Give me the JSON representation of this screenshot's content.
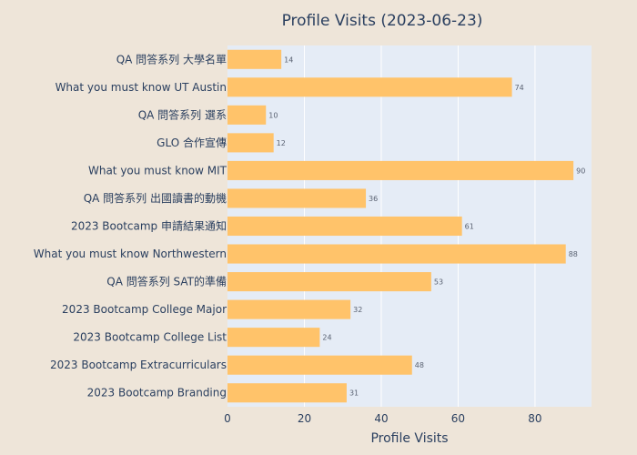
{
  "chart_data": {
    "type": "bar",
    "orientation": "horizontal",
    "title": "Profile Visits (2023-06-23)",
    "xlabel": "Profile Visits",
    "ylabel": "",
    "xlim": [
      0,
      94.7
    ],
    "x_ticks": [
      0,
      20,
      40,
      60,
      80
    ],
    "grid": true,
    "categories": [
      "QA 問答系列 大學名單",
      "What you must know UT Austin",
      "QA 問答系列 選系",
      "GLO 合作宣傳",
      "What you must know MIT",
      "QA 問答系列 出國讀書的動機",
      "2023 Bootcamp 申請結果通知",
      "What you must know Northwestern",
      "QA 問答系列 SAT的準備",
      "2023 Bootcamp College Major",
      "2023 Bootcamp College List",
      "2023 Bootcamp Extracurriculars",
      "2023 Bootcamp Branding"
    ],
    "values": [
      14,
      74,
      10,
      12,
      90,
      36,
      61,
      88,
      53,
      32,
      24,
      48,
      31
    ],
    "colors": {
      "bar": "#ffc36a",
      "plot_bg": "#e5ecf6",
      "paper_bg": "#eee5d9",
      "grid": "#ffffff",
      "text": "#2a3f5f",
      "label": "#5a6272"
    }
  }
}
